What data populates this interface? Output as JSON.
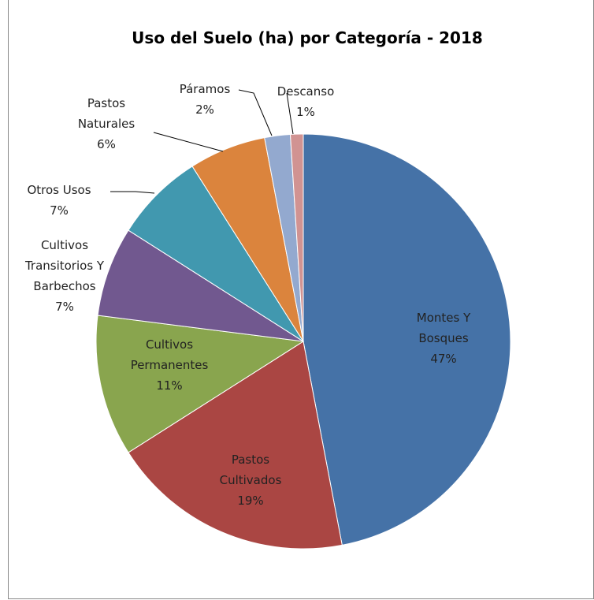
{
  "chart_data": {
    "type": "pie",
    "title": "Uso del Suelo (ha)  por Categoría - 2018",
    "categories": [
      "Montes Y Bosques",
      "Pastos Cultivados",
      "Cultivos Permanentes",
      "Cultivos Transitorios Y Barbechos",
      "Otros Usos",
      "Pastos Naturales",
      "Páramos",
      "Descanso"
    ],
    "values": [
      47,
      19,
      11,
      7,
      7,
      6,
      2,
      1
    ],
    "value_labels": [
      "47%",
      "19%",
      "11%",
      "7%",
      "7%",
      "6%",
      "2%",
      "1%"
    ],
    "colors": [
      "#4572a7",
      "#aa4643",
      "#89a54e",
      "#71588f",
      "#4198af",
      "#db843d",
      "#93a9cf",
      "#d19392"
    ]
  }
}
